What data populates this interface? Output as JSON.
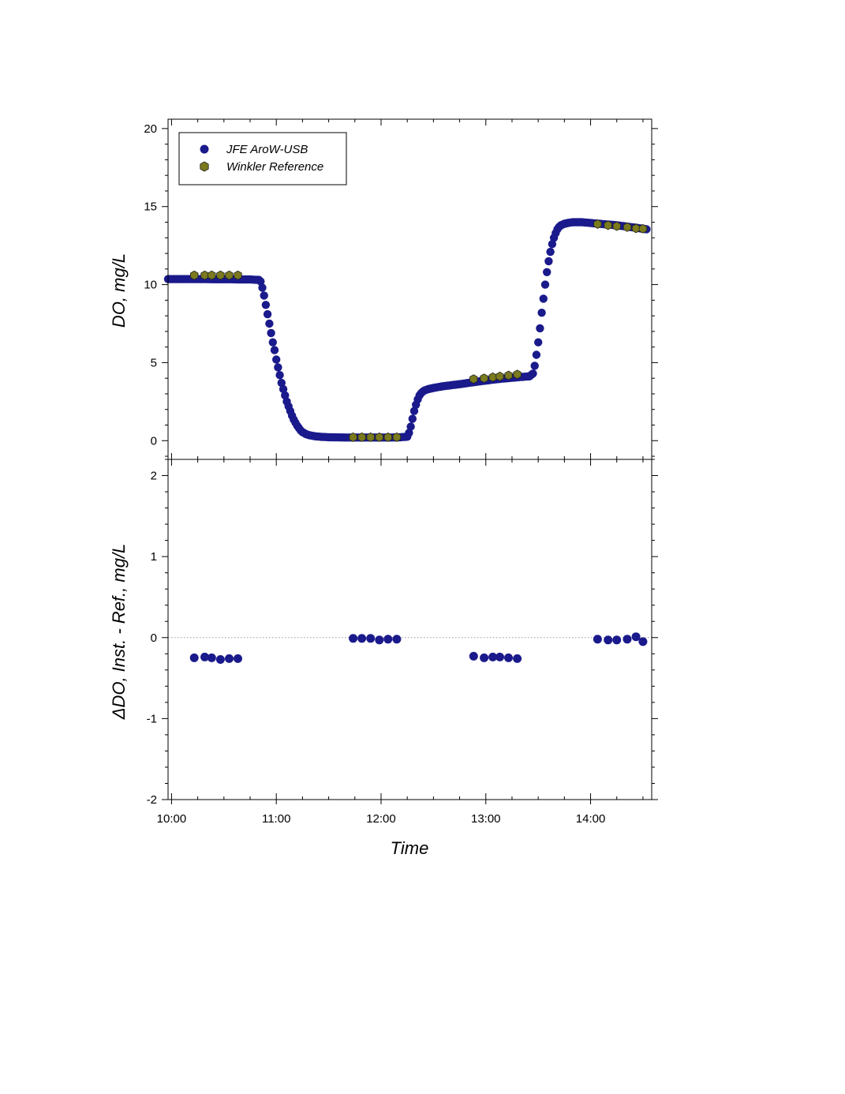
{
  "chart_data": [
    {
      "type": "scatter",
      "panel": "top",
      "ylabel": "DO, mg/L",
      "xlabel": "",
      "ylim": [
        -1.2,
        20.6
      ],
      "xlim": [
        "09:58",
        "14:35"
      ],
      "yticks": [
        0,
        5,
        10,
        15,
        20
      ],
      "legend": {
        "placement": "top-left",
        "entries": [
          "JFE AroW-USB",
          "Winkler Reference"
        ]
      },
      "series": [
        {
          "name": "JFE AroW-USB",
          "color": "#1a1a8c",
          "marker": "circle",
          "x": [
            "09:58",
            "10:00",
            "10:05",
            "10:10",
            "10:15",
            "10:20",
            "10:25",
            "10:30",
            "10:35",
            "10:40",
            "10:45",
            "10:50",
            "10:51",
            "10:52",
            "10:53",
            "10:54",
            "10:55",
            "10:56",
            "10:57",
            "10:58",
            "10:59",
            "11:00",
            "11:01",
            "11:02",
            "11:03",
            "11:04",
            "11:05",
            "11:06",
            "11:07",
            "11:08",
            "11:09",
            "11:10",
            "11:11",
            "11:12",
            "11:13",
            "11:14",
            "11:15",
            "11:17",
            "11:19",
            "11:21",
            "11:23",
            "11:25",
            "11:28",
            "11:31",
            "11:35",
            "11:40",
            "11:45",
            "11:50",
            "11:55",
            "12:00",
            "12:05",
            "12:10",
            "12:15",
            "12:16",
            "12:17",
            "12:18",
            "12:19",
            "12:20",
            "12:21",
            "12:22",
            "12:23",
            "12:24",
            "12:25",
            "12:27",
            "12:29",
            "12:31",
            "12:35",
            "12:40",
            "12:45",
            "12:50",
            "12:55",
            "13:00",
            "13:05",
            "13:10",
            "13:15",
            "13:20",
            "13:25",
            "13:27",
            "13:28",
            "13:29",
            "13:30",
            "13:31",
            "13:32",
            "13:33",
            "13:34",
            "13:35",
            "13:36",
            "13:37",
            "13:38",
            "13:39",
            "13:40",
            "13:41",
            "13:42",
            "13:43",
            "13:44",
            "13:45",
            "13:47",
            "13:50",
            "13:55",
            "14:00",
            "14:05",
            "14:10",
            "14:15",
            "14:20",
            "14:25",
            "14:30",
            "14:32"
          ],
          "y": [
            10.35,
            10.35,
            10.35,
            10.35,
            10.35,
            10.35,
            10.34,
            10.34,
            10.34,
            10.33,
            10.33,
            10.3,
            10.2,
            9.8,
            9.3,
            8.7,
            8.1,
            7.5,
            6.9,
            6.3,
            5.8,
            5.2,
            4.7,
            4.2,
            3.7,
            3.3,
            2.9,
            2.5,
            2.2,
            1.9,
            1.6,
            1.35,
            1.15,
            0.95,
            0.8,
            0.65,
            0.55,
            0.42,
            0.35,
            0.3,
            0.27,
            0.25,
            0.23,
            0.22,
            0.21,
            0.2,
            0.2,
            0.2,
            0.2,
            0.2,
            0.2,
            0.21,
            0.25,
            0.5,
            0.9,
            1.4,
            1.9,
            2.3,
            2.65,
            2.9,
            3.05,
            3.15,
            3.22,
            3.3,
            3.35,
            3.4,
            3.48,
            3.55,
            3.62,
            3.7,
            3.78,
            3.85,
            3.92,
            3.98,
            4.03,
            4.08,
            4.12,
            4.3,
            4.8,
            5.5,
            6.3,
            7.2,
            8.2,
            9.1,
            10.0,
            10.8,
            11.5,
            12.1,
            12.6,
            13.0,
            13.3,
            13.55,
            13.7,
            13.8,
            13.85,
            13.9,
            13.95,
            14.0,
            14.0,
            13.95,
            13.9,
            13.85,
            13.8,
            13.73,
            13.66,
            13.58,
            13.55
          ]
        },
        {
          "name": "Winkler Reference",
          "color": "#7a7a1e",
          "marker": "hexagon",
          "x": [
            "10:13",
            "10:19",
            "10:23",
            "10:28",
            "10:33",
            "10:38",
            "11:44",
            "11:49",
            "11:54",
            "11:59",
            "12:04",
            "12:09",
            "12:53",
            "12:59",
            "13:04",
            "13:08",
            "13:13",
            "13:18",
            "14:04",
            "14:10",
            "14:15",
            "14:21",
            "14:26",
            "14:30"
          ],
          "y": [
            10.6,
            10.6,
            10.6,
            10.6,
            10.6,
            10.6,
            0.22,
            0.22,
            0.22,
            0.22,
            0.22,
            0.22,
            3.95,
            4.0,
            4.07,
            4.12,
            4.18,
            4.25,
            13.88,
            13.8,
            13.74,
            13.68,
            13.6,
            13.58
          ]
        }
      ]
    },
    {
      "type": "scatter",
      "panel": "bottom",
      "ylabel": "ΔDO, Inst. - Ref., mg/L",
      "xlabel": "Time",
      "ylim": [
        -2,
        2.2
      ],
      "xlim": [
        "09:58",
        "14:35"
      ],
      "yticks": [
        -2,
        -1,
        0,
        1,
        2
      ],
      "xticks": [
        "10:00",
        "11:00",
        "12:00",
        "13:00",
        "14:00"
      ],
      "reference_line": 0,
      "series": [
        {
          "name": "",
          "color": "#1a1a8c",
          "marker": "circle",
          "x": [
            "10:13",
            "10:19",
            "10:23",
            "10:28",
            "10:33",
            "10:38",
            "11:44",
            "11:49",
            "11:54",
            "11:59",
            "12:04",
            "12:09",
            "12:53",
            "12:59",
            "13:04",
            "13:08",
            "13:13",
            "13:18",
            "14:04",
            "14:10",
            "14:15",
            "14:21",
            "14:26",
            "14:30"
          ],
          "y": [
            -0.25,
            -0.24,
            -0.25,
            -0.27,
            -0.26,
            -0.26,
            -0.01,
            -0.01,
            -0.01,
            -0.03,
            -0.02,
            -0.02,
            -0.23,
            -0.25,
            -0.24,
            -0.24,
            -0.25,
            -0.26,
            -0.02,
            -0.03,
            -0.03,
            -0.02,
            0.01,
            -0.05
          ]
        }
      ]
    }
  ]
}
